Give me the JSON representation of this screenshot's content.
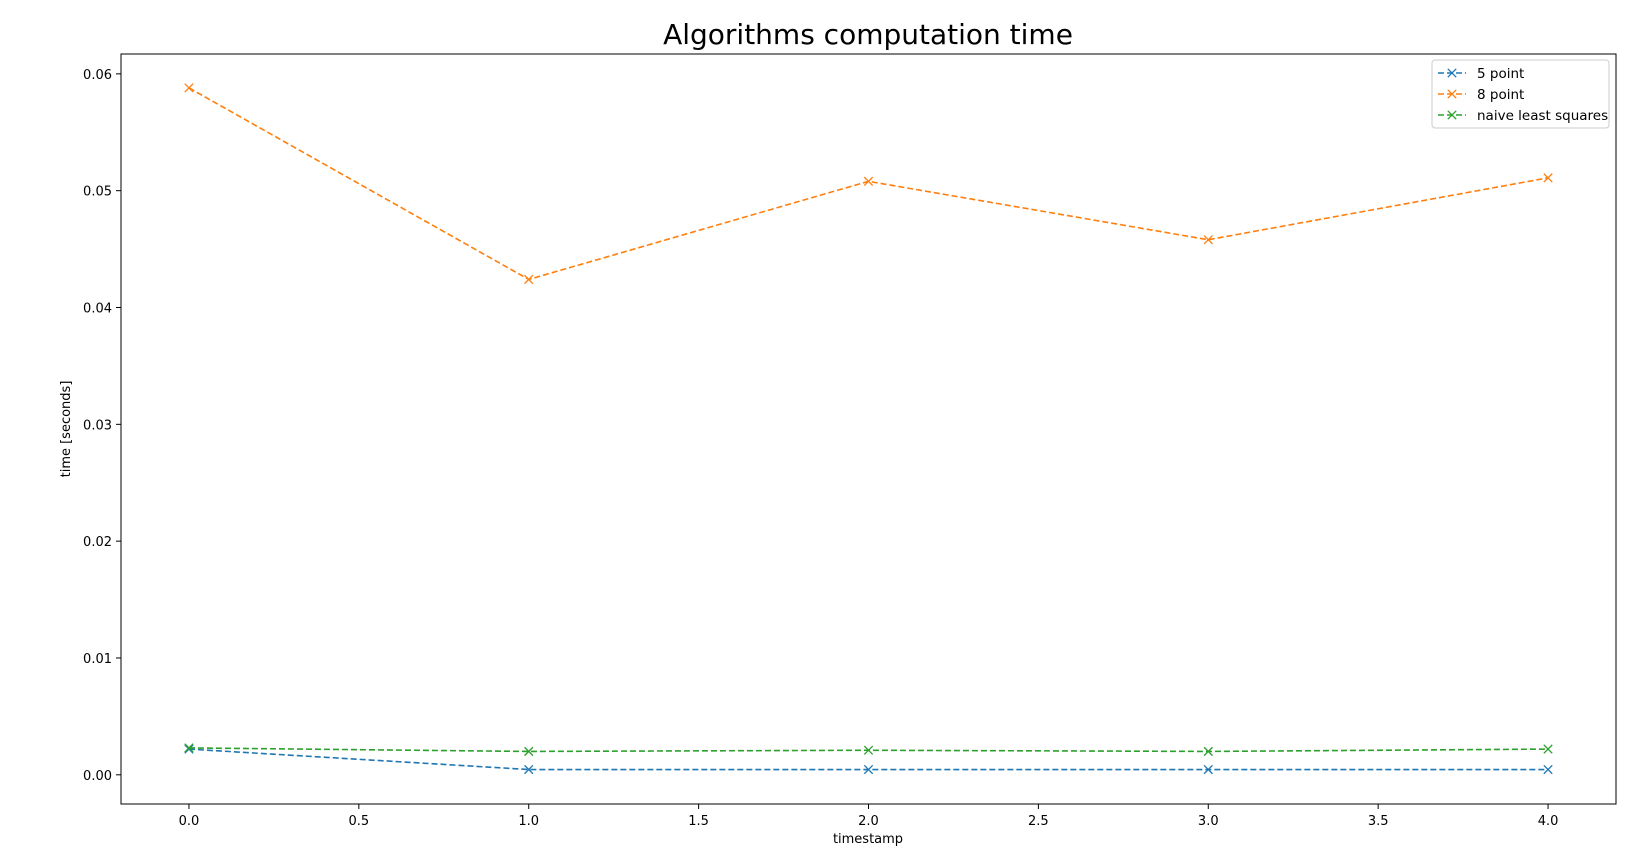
{
  "chart_data": {
    "type": "line",
    "title": "Algorithms computation time",
    "xlabel": "timestamp",
    "ylabel": "time [seconds]",
    "x": [
      0,
      1,
      2,
      3,
      4
    ],
    "xlim": [
      -0.2,
      4.2
    ],
    "ylim": [
      -0.0025,
      0.0617
    ],
    "xticks": [
      0.0,
      0.5,
      1.0,
      1.5,
      2.0,
      2.5,
      3.0,
      3.5,
      4.0
    ],
    "xtick_labels": [
      "0.0",
      "0.5",
      "1.0",
      "1.5",
      "2.0",
      "2.5",
      "3.0",
      "3.5",
      "4.0"
    ],
    "yticks": [
      0.0,
      0.01,
      0.02,
      0.03,
      0.04,
      0.05,
      0.06
    ],
    "ytick_labels": [
      "0.00",
      "0.01",
      "0.02",
      "0.03",
      "0.04",
      "0.05",
      "0.06"
    ],
    "grid": false,
    "legend_position": "top-right",
    "line_style": "dashed",
    "marker": "x",
    "series": [
      {
        "name": "5 point",
        "color": "#1f77b4",
        "values": [
          0.0022,
          0.00045,
          0.00045,
          0.00045,
          0.00045
        ]
      },
      {
        "name": "8 point",
        "color": "#ff7f0e",
        "values": [
          0.0588,
          0.0424,
          0.0508,
          0.0458,
          0.0511
        ]
      },
      {
        "name": "naive least squares",
        "color": "#2ca02c",
        "values": [
          0.0023,
          0.002,
          0.0021,
          0.002,
          0.0022
        ]
      }
    ]
  }
}
